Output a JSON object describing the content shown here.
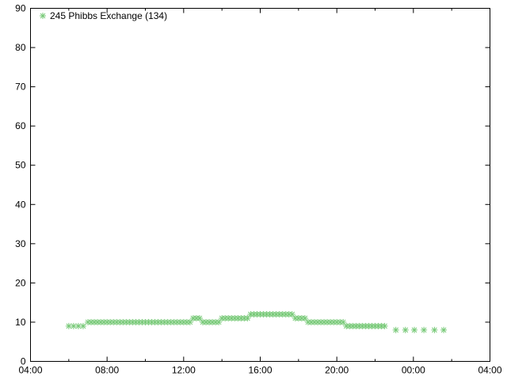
{
  "chart_data": {
    "type": "scatter",
    "title": "",
    "xlabel": "",
    "ylabel": "",
    "xlim": [
      "04:00",
      "04:00 (+1 day)"
    ],
    "ylim": [
      0,
      90
    ],
    "x_ticks": [
      "04:00",
      "08:00",
      "12:00",
      "16:00",
      "20:00",
      "00:00",
      "04:00"
    ],
    "y_ticks": [
      "0",
      "10",
      "20",
      "30",
      "40",
      "50",
      "60",
      "70",
      "80",
      "90"
    ],
    "grid": false,
    "legend_position": "top-left",
    "marker": "asterisk",
    "series": [
      {
        "name": "245 Phibbs Exchange (134)",
        "color": "#77c977",
        "points": [
          [
            "06:00",
            9
          ],
          [
            "06:15",
            9
          ],
          [
            "06:30",
            9
          ],
          [
            "06:45",
            9
          ],
          [
            "07:00",
            10
          ],
          [
            "07:10",
            10
          ],
          [
            "07:20",
            10
          ],
          [
            "07:30",
            10
          ],
          [
            "07:40",
            10
          ],
          [
            "07:50",
            10
          ],
          [
            "08:00",
            10
          ],
          [
            "08:10",
            10
          ],
          [
            "08:20",
            10
          ],
          [
            "08:30",
            10
          ],
          [
            "08:40",
            10
          ],
          [
            "08:50",
            10
          ],
          [
            "09:00",
            10
          ],
          [
            "09:10",
            10
          ],
          [
            "09:20",
            10
          ],
          [
            "09:30",
            10
          ],
          [
            "09:40",
            10
          ],
          [
            "09:50",
            10
          ],
          [
            "10:00",
            10
          ],
          [
            "10:10",
            10
          ],
          [
            "10:20",
            10
          ],
          [
            "10:30",
            10
          ],
          [
            "10:40",
            10
          ],
          [
            "10:50",
            10
          ],
          [
            "11:00",
            10
          ],
          [
            "11:10",
            10
          ],
          [
            "11:20",
            10
          ],
          [
            "11:30",
            10
          ],
          [
            "11:40",
            10
          ],
          [
            "11:50",
            10
          ],
          [
            "12:00",
            10
          ],
          [
            "12:10",
            10
          ],
          [
            "12:20",
            10
          ],
          [
            "12:30",
            11
          ],
          [
            "12:40",
            11
          ],
          [
            "12:50",
            11
          ],
          [
            "13:00",
            10
          ],
          [
            "13:10",
            10
          ],
          [
            "13:20",
            10
          ],
          [
            "13:30",
            10
          ],
          [
            "13:40",
            10
          ],
          [
            "13:50",
            10
          ],
          [
            "14:00",
            11
          ],
          [
            "14:10",
            11
          ],
          [
            "14:20",
            11
          ],
          [
            "14:30",
            11
          ],
          [
            "14:40",
            11
          ],
          [
            "14:50",
            11
          ],
          [
            "15:00",
            11
          ],
          [
            "15:10",
            11
          ],
          [
            "15:20",
            11
          ],
          [
            "15:30",
            12
          ],
          [
            "15:40",
            12
          ],
          [
            "15:50",
            12
          ],
          [
            "16:00",
            12
          ],
          [
            "16:10",
            12
          ],
          [
            "16:20",
            12
          ],
          [
            "16:30",
            12
          ],
          [
            "16:40",
            12
          ],
          [
            "16:50",
            12
          ],
          [
            "17:00",
            12
          ],
          [
            "17:10",
            12
          ],
          [
            "17:20",
            12
          ],
          [
            "17:30",
            12
          ],
          [
            "17:40",
            12
          ],
          [
            "17:50",
            11
          ],
          [
            "18:00",
            11
          ],
          [
            "18:10",
            11
          ],
          [
            "18:20",
            11
          ],
          [
            "18:30",
            10
          ],
          [
            "18:40",
            10
          ],
          [
            "18:50",
            10
          ],
          [
            "19:00",
            10
          ],
          [
            "19:10",
            10
          ],
          [
            "19:20",
            10
          ],
          [
            "19:30",
            10
          ],
          [
            "19:40",
            10
          ],
          [
            "19:50",
            10
          ],
          [
            "20:00",
            10
          ],
          [
            "20:10",
            10
          ],
          [
            "20:20",
            10
          ],
          [
            "20:30",
            9
          ],
          [
            "20:40",
            9
          ],
          [
            "20:50",
            9
          ],
          [
            "21:00",
            9
          ],
          [
            "21:10",
            9
          ],
          [
            "21:20",
            9
          ],
          [
            "21:30",
            9
          ],
          [
            "21:40",
            9
          ],
          [
            "21:50",
            9
          ],
          [
            "22:00",
            9
          ],
          [
            "22:10",
            9
          ],
          [
            "22:20",
            9
          ],
          [
            "22:30",
            9
          ],
          [
            "23:05",
            8
          ],
          [
            "23:35",
            8
          ],
          [
            "00:03",
            8
          ],
          [
            "00:33",
            8
          ],
          [
            "01:06",
            8
          ],
          [
            "01:35",
            8
          ]
        ]
      }
    ]
  }
}
